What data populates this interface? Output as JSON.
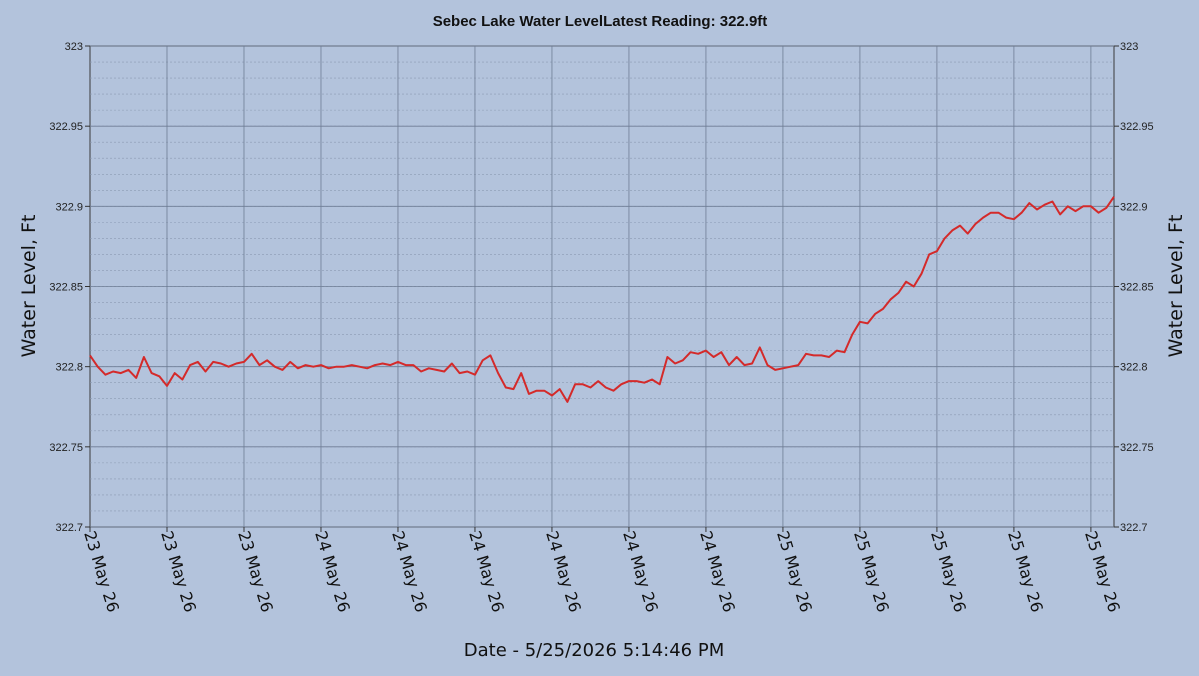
{
  "chart_data": {
    "type": "line",
    "title": "Sebec Lake Water LevelLatest Reading: 322.9ft",
    "xlabel": "Date - 5/25/2026 5:14:46 PM",
    "ylabel": "Water Level, Ft",
    "ylim": [
      322.7,
      323
    ],
    "y_ticks": [
      "323",
      "322.95",
      "322.9",
      "322.85",
      "322.8",
      "322.75",
      "322.7"
    ],
    "y_tick_values": [
      323,
      322.95,
      322.9,
      322.85,
      322.8,
      322.75,
      322.7
    ],
    "x_ticks": [
      "23 May 26",
      "23 May 26",
      "23 May 26",
      "24 May 26",
      "24 May 26",
      "24 May 26",
      "24 May 26",
      "24 May 26",
      "24 May 26",
      "25 May 26",
      "25 May 26",
      "25 May 26",
      "25 May 26",
      "25 May 26"
    ],
    "xlim": [
      0,
      13.3
    ],
    "grid": true,
    "right_axis": true,
    "series": [
      {
        "color": "#d42a2a",
        "x": [
          0.0,
          0.1,
          0.2,
          0.3,
          0.4,
          0.5,
          0.6,
          0.7,
          0.8,
          0.9,
          1.0,
          1.1,
          1.2,
          1.3,
          1.4,
          1.5,
          1.6,
          1.7,
          1.8,
          1.9,
          2.0,
          2.1,
          2.2,
          2.3,
          2.4,
          2.5,
          2.6,
          2.7,
          2.8,
          2.9,
          3.0,
          3.1,
          3.2,
          3.3,
          3.4,
          3.5,
          3.6,
          3.7,
          3.8,
          3.9,
          4.0,
          4.1,
          4.2,
          4.3,
          4.4,
          4.5,
          4.6,
          4.7,
          4.8,
          4.9,
          5.0,
          5.1,
          5.2,
          5.3,
          5.4,
          5.5,
          5.6,
          5.7,
          5.8,
          5.9,
          6.0,
          6.1,
          6.2,
          6.3,
          6.4,
          6.5,
          6.6,
          6.7,
          6.8,
          6.9,
          7.0,
          7.1,
          7.2,
          7.3,
          7.4,
          7.5,
          7.6,
          7.7,
          7.8,
          7.9,
          8.0,
          8.1,
          8.2,
          8.3,
          8.4,
          8.5,
          8.6,
          8.7,
          8.8,
          8.9,
          9.0,
          9.1,
          9.2,
          9.3,
          9.4,
          9.5,
          9.6,
          9.7,
          9.8,
          9.9,
          10.0,
          10.1,
          10.2,
          10.3,
          10.4,
          10.5,
          10.6,
          10.7,
          10.8,
          10.9,
          11.0,
          11.1,
          11.2,
          11.3,
          11.4,
          11.5,
          11.6,
          11.7,
          11.8,
          11.9,
          12.0,
          12.1,
          12.2,
          12.3,
          12.4,
          12.5,
          12.6,
          12.7,
          12.8,
          12.9,
          13.0,
          13.1,
          13.2,
          13.3
        ],
        "values": [
          322.807,
          322.8,
          322.795,
          322.797,
          322.796,
          322.798,
          322.793,
          322.806,
          322.796,
          322.794,
          322.788,
          322.796,
          322.792,
          322.801,
          322.803,
          322.797,
          322.803,
          322.802,
          322.8,
          322.802,
          322.803,
          322.808,
          322.801,
          322.804,
          322.8,
          322.798,
          322.803,
          322.799,
          322.801,
          322.8,
          322.801,
          322.799,
          322.8,
          322.8,
          322.801,
          322.8,
          322.799,
          322.801,
          322.802,
          322.801,
          322.803,
          322.801,
          322.801,
          322.797,
          322.799,
          322.798,
          322.797,
          322.802,
          322.796,
          322.797,
          322.795,
          322.804,
          322.807,
          322.796,
          322.787,
          322.786,
          322.796,
          322.783,
          322.785,
          322.785,
          322.782,
          322.786,
          322.778,
          322.789,
          322.789,
          322.787,
          322.791,
          322.787,
          322.785,
          322.789,
          322.791,
          322.791,
          322.79,
          322.792,
          322.789,
          322.806,
          322.802,
          322.804,
          322.809,
          322.808,
          322.81,
          322.806,
          322.809,
          322.801,
          322.806,
          322.801,
          322.802,
          322.812,
          322.801,
          322.798,
          322.799,
          322.8,
          322.801,
          322.808,
          322.807,
          322.807,
          322.806,
          322.81,
          322.809,
          322.82,
          322.828,
          322.827,
          322.833,
          322.836,
          322.842,
          322.846,
          322.853,
          322.85,
          322.858,
          322.87,
          322.872,
          322.88,
          322.885,
          322.888,
          322.883,
          322.889,
          322.893,
          322.896,
          322.896,
          322.893,
          322.892,
          322.896,
          322.902,
          322.898,
          322.901,
          322.903,
          322.895,
          322.9,
          322.897,
          322.9,
          322.9,
          322.896,
          322.899,
          322.906
        ]
      }
    ]
  }
}
